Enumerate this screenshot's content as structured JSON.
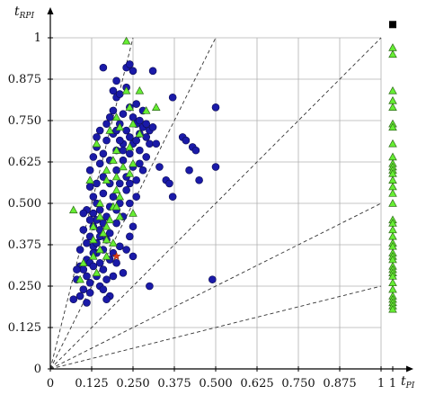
{
  "chart_data": {
    "type": "scatter",
    "title": "",
    "xlabel": "t",
    "xlabel_sub": "PI",
    "ylabel": "t",
    "ylabel_sub": "RPI",
    "xlim": [
      0,
      1
    ],
    "ylim": [
      0,
      1
    ],
    "x_ticks": [
      "0",
      "0.125",
      "0.250",
      "0.375",
      "0.500",
      "0.625",
      "0.750",
      "0.875",
      "1"
    ],
    "y_ticks": [
      "0",
      "0.125",
      "0.250",
      "0.375",
      "0.500",
      "0.625",
      "0.750",
      "0.875",
      "1"
    ],
    "side_column_x_label": "1",
    "grid": true,
    "reference_lines": [
      {
        "slope": 0.25
      },
      {
        "slope": 0.5
      },
      {
        "slope": 1
      },
      {
        "slope": 2
      },
      {
        "slope": 4
      }
    ],
    "colors": {
      "circle_fill": "#1a1aa8",
      "circle_stroke": "#0a0a50",
      "triangle_fill": "#66ee33",
      "triangle_stroke": "#2f6a1a",
      "star_fill": "#e03a14",
      "square_fill": "#000000",
      "grid": "#b0b0b0"
    },
    "series": [
      {
        "marker": "circle",
        "points": [
          [
            0.07,
            0.21
          ],
          [
            0.08,
            0.27
          ],
          [
            0.09,
            0.31
          ],
          [
            0.1,
            0.3
          ],
          [
            0.1,
            0.24
          ],
          [
            0.11,
            0.33
          ],
          [
            0.11,
            0.2
          ],
          [
            0.12,
            0.26
          ],
          [
            0.12,
            0.32
          ],
          [
            0.13,
            0.37
          ],
          [
            0.12,
            0.4
          ],
          [
            0.13,
            0.43
          ],
          [
            0.13,
            0.47
          ],
          [
            0.14,
            0.38
          ],
          [
            0.14,
            0.45
          ],
          [
            0.14,
            0.35
          ],
          [
            0.15,
            0.42
          ],
          [
            0.15,
            0.48
          ],
          [
            0.15,
            0.25
          ],
          [
            0.16,
            0.3
          ],
          [
            0.16,
            0.36
          ],
          [
            0.16,
            0.44
          ],
          [
            0.17,
            0.39
          ],
          [
            0.17,
            0.27
          ],
          [
            0.18,
            0.33
          ],
          [
            0.18,
            0.41
          ],
          [
            0.18,
            0.22
          ],
          [
            0.19,
            0.35
          ],
          [
            0.19,
            0.28
          ],
          [
            0.2,
            0.32
          ],
          [
            0.21,
            0.37
          ],
          [
            0.22,
            0.29
          ],
          [
            0.23,
            0.36
          ],
          [
            0.24,
            0.4
          ],
          [
            0.25,
            0.43
          ],
          [
            0.25,
            0.34
          ],
          [
            0.2,
            0.44
          ],
          [
            0.17,
            0.46
          ],
          [
            0.14,
            0.5
          ],
          [
            0.13,
            0.52
          ],
          [
            0.12,
            0.55
          ],
          [
            0.12,
            0.6
          ],
          [
            0.13,
            0.64
          ],
          [
            0.14,
            0.67
          ],
          [
            0.14,
            0.7
          ],
          [
            0.15,
            0.72
          ],
          [
            0.15,
            0.62
          ],
          [
            0.16,
            0.58
          ],
          [
            0.16,
            0.65
          ],
          [
            0.17,
            0.74
          ],
          [
            0.17,
            0.69
          ],
          [
            0.18,
            0.76
          ],
          [
            0.18,
            0.63
          ],
          [
            0.19,
            0.78
          ],
          [
            0.19,
            0.71
          ],
          [
            0.2,
            0.82
          ],
          [
            0.2,
            0.66
          ],
          [
            0.2,
            0.6
          ],
          [
            0.21,
            0.74
          ],
          [
            0.21,
            0.56
          ],
          [
            0.22,
            0.77
          ],
          [
            0.22,
            0.68
          ],
          [
            0.22,
            0.63
          ],
          [
            0.23,
            0.85
          ],
          [
            0.23,
            0.72
          ],
          [
            0.23,
            0.58
          ],
          [
            0.24,
            0.79
          ],
          [
            0.24,
            0.7
          ],
          [
            0.24,
            0.65
          ],
          [
            0.25,
            0.76
          ],
          [
            0.25,
            0.68
          ],
          [
            0.25,
            0.61
          ],
          [
            0.26,
            0.74
          ],
          [
            0.26,
            0.69
          ],
          [
            0.26,
            0.8
          ],
          [
            0.27,
            0.75
          ],
          [
            0.27,
            0.71
          ],
          [
            0.27,
            0.66
          ],
          [
            0.28,
            0.78
          ],
          [
            0.28,
            0.73
          ],
          [
            0.29,
            0.74
          ],
          [
            0.29,
            0.7
          ],
          [
            0.3,
            0.68
          ],
          [
            0.3,
            0.72
          ],
          [
            0.31,
            0.9
          ],
          [
            0.31,
            0.73
          ],
          [
            0.32,
            0.68
          ],
          [
            0.33,
            0.61
          ],
          [
            0.23,
            0.91
          ],
          [
            0.24,
            0.92
          ],
          [
            0.25,
            0.9
          ],
          [
            0.16,
            0.91
          ],
          [
            0.2,
            0.87
          ],
          [
            0.21,
            0.83
          ],
          [
            0.19,
            0.84
          ],
          [
            0.2,
            0.72
          ],
          [
            0.21,
            0.69
          ],
          [
            0.22,
            0.66
          ],
          [
            0.18,
            0.56
          ],
          [
            0.19,
            0.52
          ],
          [
            0.2,
            0.48
          ],
          [
            0.21,
            0.5
          ],
          [
            0.22,
            0.46
          ],
          [
            0.23,
            0.54
          ],
          [
            0.24,
            0.5
          ],
          [
            0.1,
            0.42
          ],
          [
            0.09,
            0.36
          ],
          [
            0.08,
            0.3
          ],
          [
            0.11,
            0.48
          ],
          [
            0.12,
            0.45
          ],
          [
            0.11,
            0.38
          ],
          [
            0.1,
            0.47
          ],
          [
            0.13,
            0.31
          ],
          [
            0.14,
            0.28
          ],
          [
            0.15,
            0.32
          ],
          [
            0.12,
            0.23
          ],
          [
            0.16,
            0.24
          ],
          [
            0.17,
            0.21
          ],
          [
            0.09,
            0.22
          ],
          [
            0.11,
            0.28
          ],
          [
            0.27,
            0.62
          ],
          [
            0.28,
            0.6
          ],
          [
            0.26,
            0.57
          ],
          [
            0.29,
            0.64
          ],
          [
            0.35,
            0.57
          ],
          [
            0.37,
            0.52
          ],
          [
            0.36,
            0.56
          ],
          [
            0.4,
            0.7
          ],
          [
            0.41,
            0.69
          ],
          [
            0.43,
            0.67
          ],
          [
            0.44,
            0.66
          ],
          [
            0.42,
            0.6
          ],
          [
            0.45,
            0.57
          ],
          [
            0.5,
            0.61
          ],
          [
            0.49,
            0.27
          ],
          [
            0.5,
            0.79
          ],
          [
            0.37,
            0.82
          ],
          [
            0.3,
            0.25
          ],
          [
            0.24,
            0.56
          ],
          [
            0.26,
            0.52
          ],
          [
            0.14,
            0.56
          ],
          [
            0.16,
            0.53
          ],
          [
            0.18,
            0.49
          ],
          [
            0.15,
            0.4
          ],
          [
            0.13,
            0.35
          ]
        ]
      },
      {
        "marker": "triangle",
        "points": [
          [
            0.23,
            0.99
          ],
          [
            0.23,
            0.84
          ],
          [
            0.27,
            0.84
          ],
          [
            0.24,
            0.79
          ],
          [
            0.2,
            0.76
          ],
          [
            0.29,
            0.78
          ],
          [
            0.32,
            0.79
          ],
          [
            0.25,
            0.74
          ],
          [
            0.21,
            0.73
          ],
          [
            0.18,
            0.72
          ],
          [
            0.14,
            0.68
          ],
          [
            0.27,
            0.71
          ],
          [
            0.24,
            0.67
          ],
          [
            0.2,
            0.66
          ],
          [
            0.19,
            0.63
          ],
          [
            0.22,
            0.61
          ],
          [
            0.17,
            0.6
          ],
          [
            0.25,
            0.62
          ],
          [
            0.24,
            0.59
          ],
          [
            0.2,
            0.58
          ],
          [
            0.17,
            0.57
          ],
          [
            0.12,
            0.57
          ],
          [
            0.2,
            0.54
          ],
          [
            0.21,
            0.52
          ],
          [
            0.19,
            0.49
          ],
          [
            0.15,
            0.5
          ],
          [
            0.25,
            0.47
          ],
          [
            0.18,
            0.45
          ],
          [
            0.15,
            0.46
          ],
          [
            0.07,
            0.48
          ],
          [
            0.13,
            0.43
          ],
          [
            0.17,
            0.43
          ],
          [
            0.21,
            0.46
          ],
          [
            0.15,
            0.36
          ],
          [
            0.13,
            0.39
          ],
          [
            0.16,
            0.41
          ],
          [
            0.17,
            0.39
          ],
          [
            0.13,
            0.34
          ],
          [
            0.17,
            0.34
          ],
          [
            0.14,
            0.29
          ],
          [
            0.09,
            0.27
          ],
          [
            0.1,
            0.32
          ],
          [
            0.2,
            0.49
          ],
          [
            0.19,
            0.38
          ]
        ]
      },
      {
        "marker": "triangle-side",
        "x": 1,
        "y_values": [
          0.97,
          0.95,
          0.84,
          0.81,
          0.79,
          0.74,
          0.73,
          0.68,
          0.64,
          0.62,
          0.61,
          0.6,
          0.59,
          0.57,
          0.55,
          0.53,
          0.5,
          0.45,
          0.44,
          0.42,
          0.4,
          0.38,
          0.37,
          0.35,
          0.34,
          0.33,
          0.31,
          0.3,
          0.29,
          0.28,
          0.26,
          0.24,
          0.22,
          0.21,
          0.2,
          0.19,
          0.18
        ]
      },
      {
        "marker": "star",
        "points": [
          [
            0.2,
            0.34
          ]
        ]
      },
      {
        "marker": "square",
        "points": [
          [
            1,
            1.04
          ]
        ]
      }
    ]
  }
}
